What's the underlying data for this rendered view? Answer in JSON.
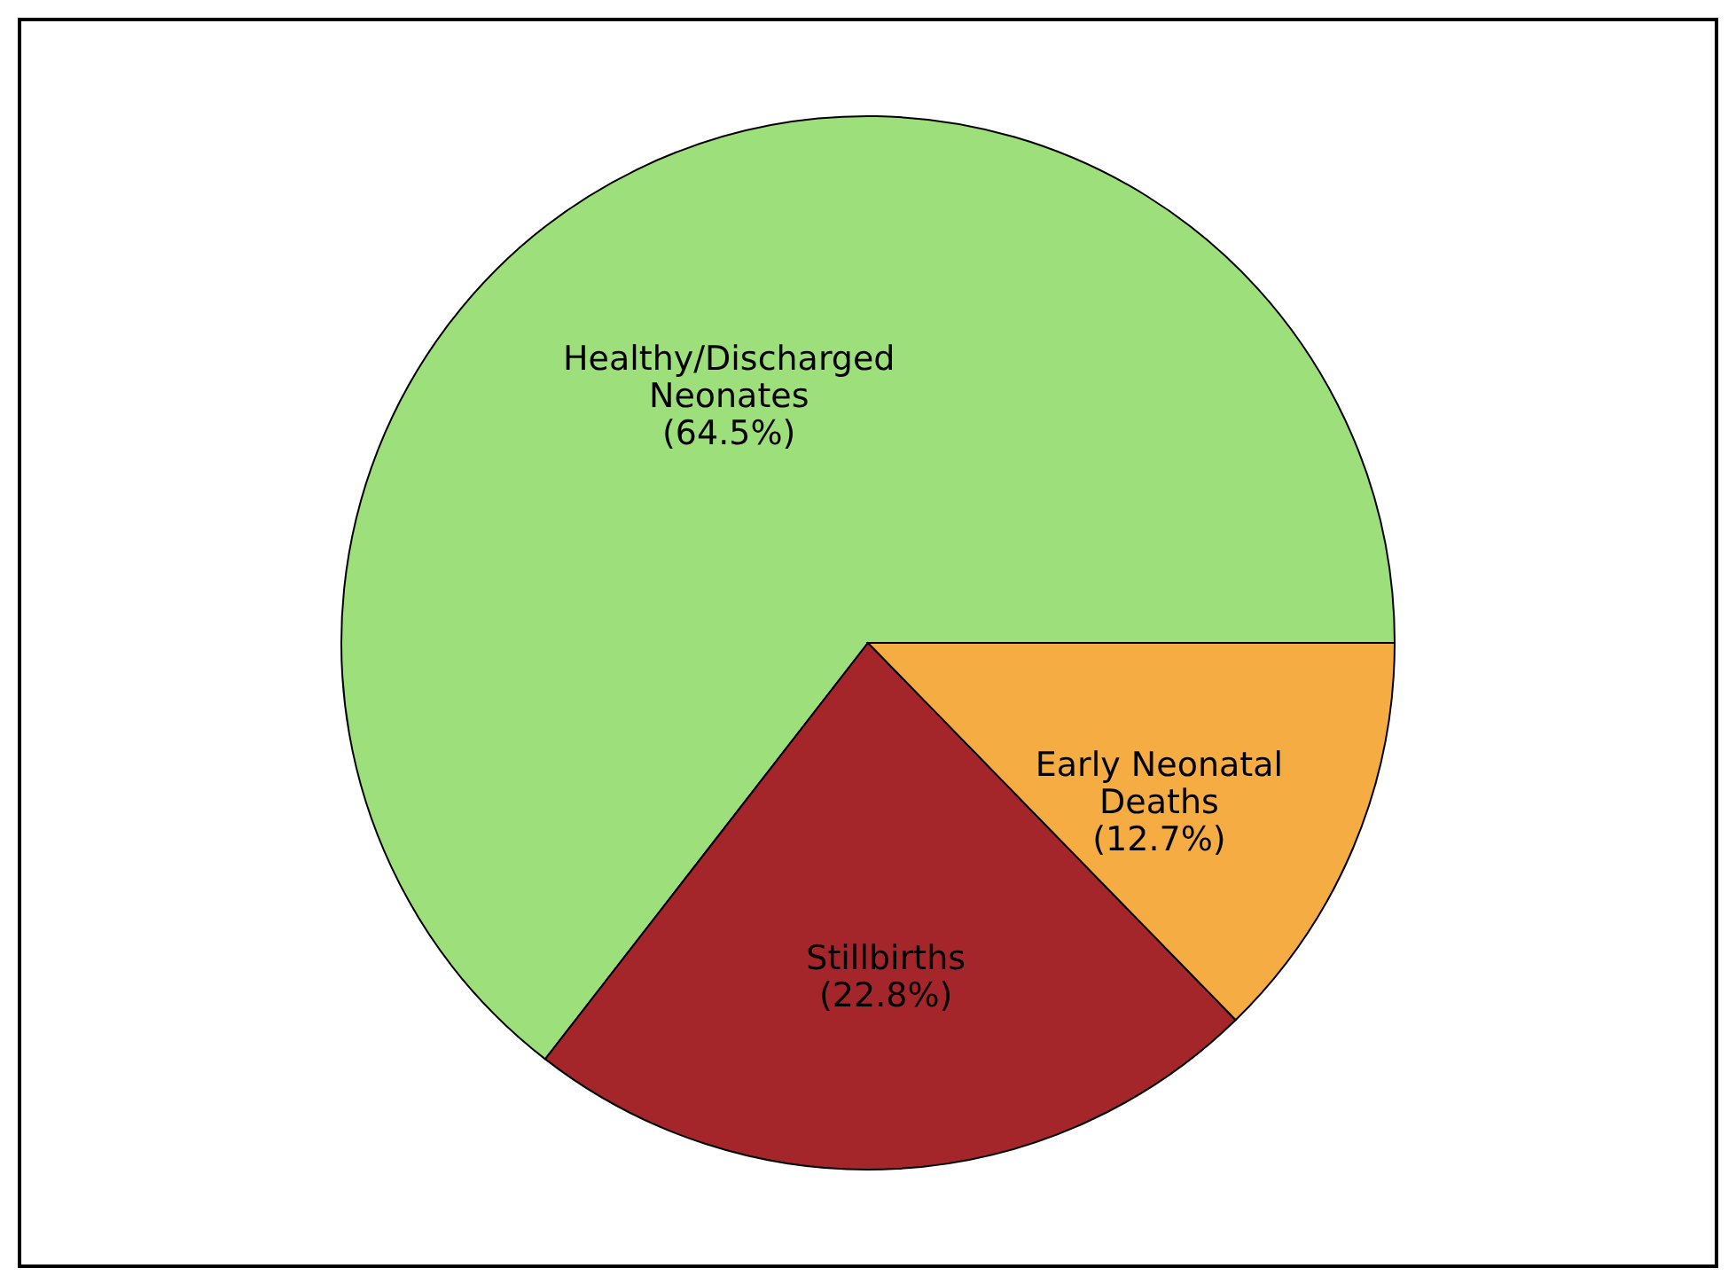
{
  "chart_data": {
    "type": "pie",
    "categories": [
      "Healthy/Discharged Neonates",
      "Stillbirths",
      "Early Neonatal Deaths"
    ],
    "values": [
      64.5,
      22.8,
      12.7
    ],
    "colors": [
      "#9ddf7b",
      "#a4262b",
      "#f5ac42"
    ],
    "value_labels": [
      "(64.5%)",
      "(22.8%)",
      "(12.7%)"
    ],
    "legend": false
  }
}
